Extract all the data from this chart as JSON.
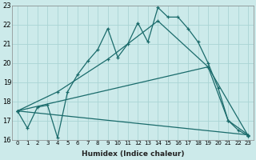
{
  "xlabel": "Humidex (Indice chaleur)",
  "background_color": "#cceaea",
  "grid_color": "#aad4d4",
  "line_color": "#1a6b6b",
  "xlim": [
    -0.5,
    23.5
  ],
  "ylim": [
    16,
    23
  ],
  "xticks": [
    0,
    1,
    2,
    3,
    4,
    5,
    6,
    7,
    8,
    9,
    10,
    11,
    12,
    13,
    14,
    15,
    16,
    17,
    18,
    19,
    20,
    21,
    22,
    23
  ],
  "yticks": [
    16,
    17,
    18,
    19,
    20,
    21,
    22,
    23
  ],
  "lines": [
    {
      "x": [
        0,
        1,
        2,
        3,
        4,
        5,
        6,
        7,
        8,
        9,
        10,
        11,
        12,
        13,
        14,
        15,
        16,
        17,
        18,
        19,
        20,
        21,
        22,
        23
      ],
      "y": [
        17.5,
        16.6,
        17.7,
        17.8,
        16.1,
        18.5,
        19.4,
        20.1,
        20.7,
        21.8,
        20.3,
        21.0,
        22.1,
        21.1,
        22.9,
        22.4,
        22.4,
        21.8,
        21.1,
        20.0,
        18.7,
        17.0,
        16.5,
        16.2
      ]
    },
    {
      "x": [
        0,
        4,
        9,
        14,
        19,
        23
      ],
      "y": [
        17.5,
        18.5,
        20.2,
        22.2,
        19.8,
        16.2
      ]
    },
    {
      "x": [
        0,
        23
      ],
      "y": [
        17.5,
        16.25
      ]
    },
    {
      "x": [
        0,
        19,
        21,
        23
      ],
      "y": [
        17.5,
        19.8,
        17.0,
        16.25
      ]
    }
  ]
}
